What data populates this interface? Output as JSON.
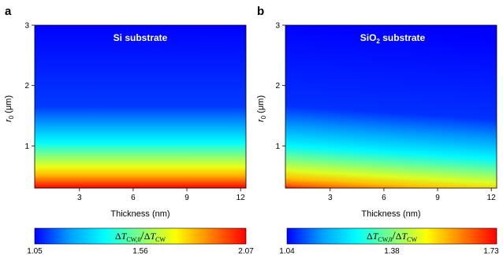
{
  "chart_data": [
    {
      "panel_label": "a",
      "type": "heatmap",
      "annotation": "Si substrate",
      "xlabel": "Thickness (nm)",
      "ylabel_main": "r",
      "ylabel_sub": "0",
      "ylabel_rest": " (μm)",
      "xlim": [
        0.5,
        12.3
      ],
      "ylim": [
        0.3,
        3
      ],
      "xticks": [
        3,
        6,
        9,
        12
      ],
      "yticks": [
        1,
        2,
        3
      ],
      "colorbar": {
        "label_delta1": "Δ",
        "label_T1": "T",
        "label_sub1": "CW,0",
        "label_slash": "/",
        "label_delta2": "Δ",
        "label_T2": "T",
        "label_sub2": "CW",
        "min": 1.05,
        "mid": 1.56,
        "max": 2.07,
        "min_label": "1.05",
        "mid_label": "1.56",
        "max_label": "2.07"
      }
    },
    {
      "panel_label": "b",
      "type": "heatmap",
      "annotation_main": "SiO",
      "annotation_sub": "2",
      "annotation_rest": " substrate",
      "xlabel": "Thickness (nm)",
      "ylabel_main": "r",
      "ylabel_sub": "0",
      "ylabel_rest": " (μm)",
      "xlim": [
        0.5,
        12.3
      ],
      "ylim": [
        0.3,
        3
      ],
      "xticks": [
        3,
        6,
        9,
        12
      ],
      "yticks": [
        1,
        2,
        3
      ],
      "colorbar": {
        "label_delta1": "Δ",
        "label_T1": "T",
        "label_sub1": "CW,0",
        "label_slash": "/",
        "label_delta2": "Δ",
        "label_T2": "T",
        "label_sub2": "CW",
        "min": 1.04,
        "mid": 1.38,
        "max": 1.73,
        "min_label": "1.04",
        "mid_label": "1.38",
        "max_label": "1.73"
      }
    }
  ],
  "colormap": [
    "#0000ff",
    "#00a0ff",
    "#00ffff",
    "#80ff80",
    "#ffff00",
    "#ff8000",
    "#ff0000"
  ]
}
